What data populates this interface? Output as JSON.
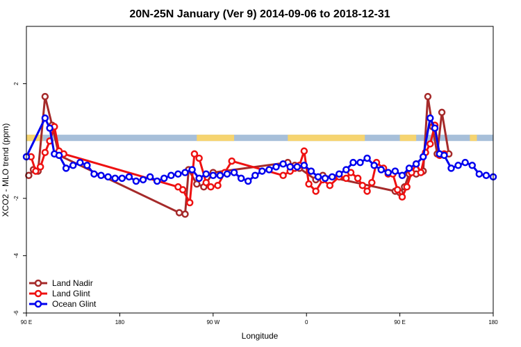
{
  "chart_data": {
    "type": "line",
    "title": "20N-25N January (Ver 9)   2014-09-06 to 2018-12-31",
    "xlabel": "Longitude",
    "ylabel": "XCO2 - MLO trend (ppm)",
    "xlim": [
      0,
      400
    ],
    "ylim": [
      -6,
      4
    ],
    "x_ticks": [
      {
        "value": 0,
        "label": "90 E"
      },
      {
        "value": 80,
        "label": "180"
      },
      {
        "value": 160,
        "label": "90 W"
      },
      {
        "value": 240,
        "label": "0"
      },
      {
        "value": 320,
        "label": "90 E"
      },
      {
        "value": 400,
        "label": "180"
      }
    ],
    "y_ticks": [
      {
        "value": -6,
        "label": "-6"
      },
      {
        "value": -4,
        "label": "-4"
      },
      {
        "value": -2,
        "label": "-2"
      },
      {
        "value": 2,
        "label": "2"
      }
    ],
    "grid": false,
    "legend_position": "bottom-left",
    "land_strip": {
      "y_range": [
        0,
        0.22
      ],
      "ocean_color": "#a7bfd9",
      "land_color": "#f6d470",
      "land_x_ranges": [
        [
          0,
          14
        ],
        [
          146,
          178
        ],
        [
          224,
          290
        ],
        [
          320,
          334
        ],
        [
          380,
          386
        ]
      ]
    },
    "series": [
      {
        "name": "Land Nadir",
        "color": "#a52a2a",
        "x": [
          2,
          6,
          10,
          16,
          22,
          28,
          131,
          136,
          139,
          146,
          152,
          160,
          224,
          230,
          234,
          248,
          254,
          316,
          320,
          324,
          328,
          334,
          340,
          344,
          348,
          352,
          356,
          362
        ],
        "y": [
          -1.2,
          -1.0,
          -1.05,
          1.55,
          0.55,
          -0.5,
          -2.5,
          -2.55,
          -1.0,
          -1.5,
          -1.6,
          -1.1,
          -0.75,
          -0.85,
          -0.95,
          -1.35,
          -1.2,
          -1.75,
          -1.8,
          -1.6,
          -1.15,
          -1.15,
          -1.05,
          1.55,
          0.5,
          -0.45,
          1.0,
          -0.45
        ]
      },
      {
        "name": "Land Glint",
        "color": "#ee1111",
        "x": [
          4,
          8,
          12,
          16,
          20,
          24,
          28,
          32,
          130,
          134,
          140,
          144,
          148,
          154,
          158,
          164,
          170,
          176,
          220,
          226,
          230,
          234,
          238,
          242,
          248,
          254,
          260,
          268,
          274,
          278,
          284,
          288,
          292,
          296,
          300,
          306,
          310,
          314,
          318,
          322,
          326,
          330,
          334,
          338,
          342,
          346,
          350,
          354,
          358
        ],
        "y": [
          -0.55,
          -1.05,
          -0.9,
          -0.4,
          0.0,
          0.5,
          -0.35,
          -0.45,
          -1.6,
          -1.7,
          -2.15,
          -0.45,
          -0.6,
          -1.45,
          -1.6,
          -1.55,
          -1.1,
          -0.7,
          -1.2,
          -1.05,
          -0.95,
          -0.85,
          -0.35,
          -1.5,
          -1.75,
          -1.35,
          -1.55,
          -1.25,
          -1.3,
          -1.1,
          -1.3,
          -1.55,
          -1.75,
          -1.45,
          -0.75,
          -0.95,
          -1.15,
          -1.15,
          -1.7,
          -1.95,
          -1.6,
          -1.1,
          -0.8,
          -1.1,
          -0.4,
          -0.1,
          0.55,
          -0.5,
          -0.45
        ]
      },
      {
        "name": "Ocean Glint",
        "color": "#0000ee",
        "x": [
          0,
          16,
          20,
          24,
          28,
          34,
          40,
          46,
          52,
          58,
          64,
          70,
          76,
          82,
          88,
          94,
          100,
          106,
          112,
          118,
          124,
          130,
          136,
          142,
          148,
          154,
          160,
          166,
          172,
          178,
          184,
          190,
          196,
          202,
          208,
          214,
          220,
          226,
          232,
          238,
          244,
          250,
          256,
          262,
          268,
          274,
          280,
          286,
          292,
          298,
          304,
          310,
          316,
          322,
          328,
          334,
          340,
          346,
          350,
          354,
          358,
          364,
          370,
          376,
          382,
          388,
          394,
          400
        ],
        "y": [
          -0.55,
          0.8,
          0.45,
          -0.45,
          -0.5,
          -0.95,
          -0.85,
          -0.75,
          -0.85,
          -1.15,
          -1.2,
          -1.25,
          -1.3,
          -1.3,
          -1.25,
          -1.4,
          -1.35,
          -1.25,
          -1.4,
          -1.3,
          -1.2,
          -1.15,
          -1.1,
          -1.0,
          -1.3,
          -1.15,
          -1.2,
          -1.2,
          -1.15,
          -1.1,
          -1.3,
          -1.4,
          -1.2,
          -1.05,
          -1.0,
          -0.9,
          -0.8,
          -0.9,
          -0.9,
          -0.85,
          -1.05,
          -1.25,
          -1.3,
          -1.25,
          -1.15,
          -1.0,
          -0.75,
          -0.75,
          -0.6,
          -0.85,
          -1.0,
          -1.1,
          -1.05,
          -1.2,
          -0.95,
          -0.8,
          -0.55,
          0.8,
          0.45,
          -0.45,
          -0.5,
          -0.95,
          -0.85,
          -0.75,
          -0.85,
          -1.15,
          -1.2,
          -1.25
        ]
      }
    ]
  }
}
